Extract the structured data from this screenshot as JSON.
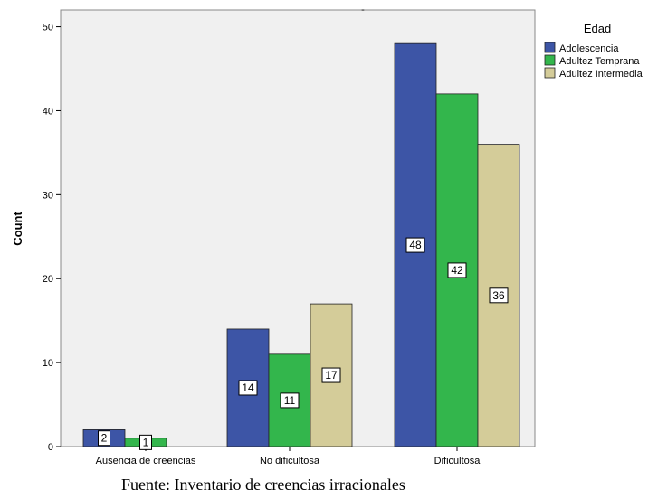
{
  "chart_data": {
    "type": "bar",
    "title": "-",
    "xlabel": "",
    "ylabel": "Count",
    "ylim": [
      0,
      52
    ],
    "yticks": [
      0,
      10,
      20,
      30,
      40,
      50
    ],
    "grid": false,
    "categories": [
      "Ausencia de creencias",
      "No dificultosa",
      "Dificultosa"
    ],
    "legend": {
      "title": "Edad",
      "placement": "top-right-outside"
    },
    "series": [
      {
        "name": "Adolescencia",
        "color": "#3d55a6",
        "values": [
          2,
          14,
          48
        ]
      },
      {
        "name": "Adultez Temprana",
        "color": "#33b64c",
        "values": [
          1,
          11,
          42
        ]
      },
      {
        "name": "Adultez Intermedia",
        "color": "#d4cc99",
        "values": [
          0,
          17,
          36
        ]
      }
    ],
    "plot_background": "#f0f0f0"
  },
  "footer": {
    "source": "Fuente: Inventario de creencias irracionales"
  }
}
